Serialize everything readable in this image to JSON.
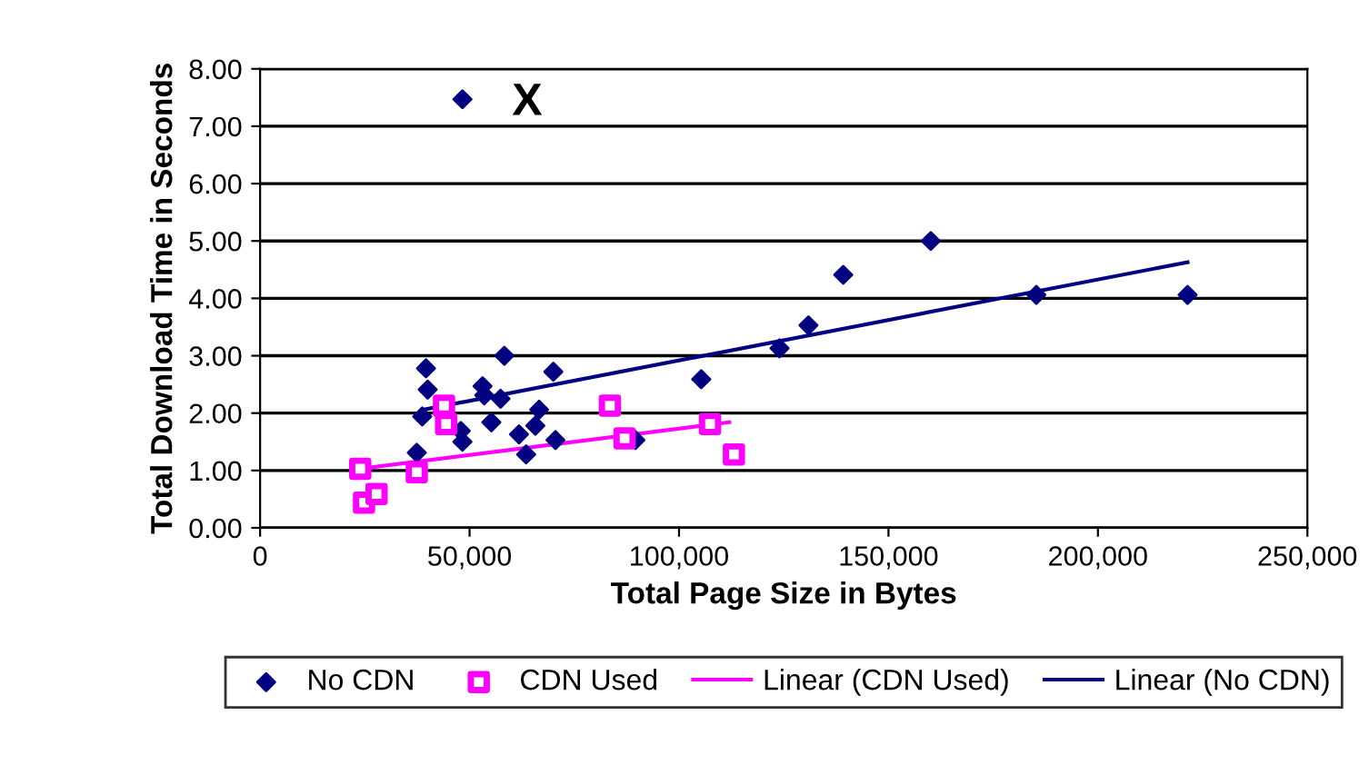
{
  "chart_data": {
    "type": "scatter",
    "xlabel": "Total Page Size in Bytes",
    "ylabel": "Total Download Time in Seconds",
    "xlim": [
      0,
      250000
    ],
    "ylim": [
      0,
      8
    ],
    "xticks": [
      0,
      {
        "value": 50000,
        "label": "50,000"
      },
      {
        "value": 100000,
        "label": "100,000"
      },
      {
        "value": 150000,
        "label": "150,000"
      },
      {
        "value": 200000,
        "label": "200,000"
      },
      {
        "value": 250000,
        "label": "250,000"
      }
    ],
    "yticks": [
      {
        "value": 0,
        "label": "0.00"
      },
      {
        "value": 1,
        "label": "1.00"
      },
      {
        "value": 2,
        "label": "2.00"
      },
      {
        "value": 3,
        "label": "3.00"
      },
      {
        "value": 4,
        "label": "4.00"
      },
      {
        "value": 5,
        "label": "5.00"
      },
      {
        "value": 6,
        "label": "6.00"
      },
      {
        "value": 7,
        "label": "7.00"
      },
      {
        "value": 8,
        "label": "8.00"
      }
    ],
    "grid": "y",
    "legend": "bottom",
    "annotations": [
      "X"
    ],
    "series": [
      {
        "name": "No CDN",
        "marker": "diamond",
        "color": "#000080",
        "x": [
          48300,
          39600,
          40000,
          38700,
          37400,
          47900,
          48300,
          53100,
          53500,
          58300,
          57400,
          55200,
          61800,
          63500,
          66600,
          65700,
          70000,
          70500,
          89600,
          105300,
          124000,
          130900,
          139200,
          160100,
          185300,
          221400
        ],
        "values": [
          7.47,
          2.78,
          2.41,
          1.94,
          1.31,
          1.69,
          1.5,
          2.47,
          2.31,
          3.0,
          2.25,
          1.84,
          1.63,
          1.28,
          2.06,
          1.78,
          2.72,
          1.53,
          1.53,
          2.59,
          3.13,
          3.53,
          4.41,
          5.0,
          4.06,
          4.06
        ]
      },
      {
        "name": "CDN Used",
        "marker": "square",
        "color": "#ff00ff",
        "x": [
          23900,
          24800,
          27800,
          37400,
          43900,
          44400,
          83500,
          87000,
          107400,
          113100
        ],
        "values": [
          1.03,
          0.44,
          0.59,
          0.97,
          2.13,
          1.81,
          2.13,
          1.56,
          1.81,
          1.28
        ]
      },
      {
        "name": "Linear (CDN Used)",
        "type": "line",
        "marker": "none",
        "color": "#ff00ff",
        "x": [
          23900,
          112000
        ],
        "values": [
          1.03,
          1.84
        ]
      },
      {
        "name": "Linear (No CDN)",
        "type": "line",
        "marker": "none",
        "color": "#000080",
        "x": [
          39100,
          221400
        ],
        "values": [
          2.06,
          4.63
        ]
      }
    ]
  }
}
